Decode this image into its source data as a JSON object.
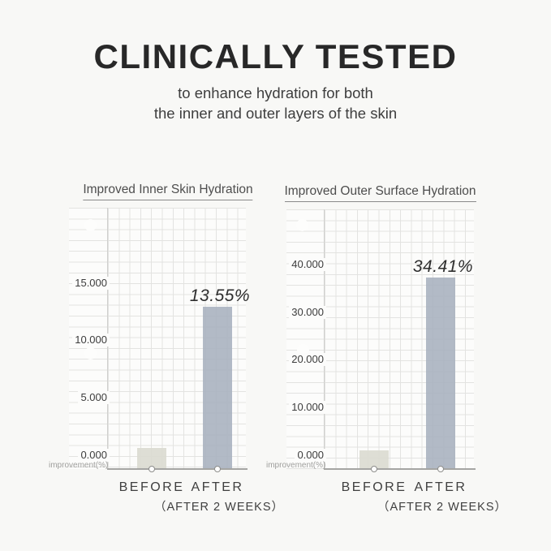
{
  "header": {
    "title": "CLINICALLY TESTED",
    "subtitle_line1": "to enhance hydration for both",
    "subtitle_line2": "the inner and outer layers of the skin"
  },
  "colors": {
    "background": "#f8f8f6",
    "paper": "#fcfcfb",
    "grid_line": "#e3e3e1",
    "baseline": "#a5a5a3",
    "bar_before": "rgba(219,219,209,0.92)",
    "bar_after": "rgba(167,176,190,0.88)"
  },
  "chart_data": [
    {
      "type": "bar",
      "title": "Improved Inner Skin Hydration",
      "categories": [
        "BEFORE",
        "AFTER"
      ],
      "values": [
        0.7,
        13.55
      ],
      "value_labels": [
        "",
        "13.55%"
      ],
      "category_sublabels": [
        "",
        "（AFTER 2 WEEKS）"
      ],
      "ylabel": "improvement(%)",
      "yticks": [
        0,
        5,
        10,
        15
      ],
      "ytick_labels": [
        "0.000",
        "5.000",
        "10.000",
        "15.000"
      ],
      "ylim": [
        0,
        20
      ],
      "grid": true,
      "legend": "none"
    },
    {
      "type": "bar",
      "title": "Improved Outer Surface Hydration",
      "categories": [
        "BEFORE",
        "AFTER"
      ],
      "values": [
        1.0,
        34.41
      ],
      "value_labels": [
        "",
        "34.41%"
      ],
      "category_sublabels": [
        "",
        "（AFTER 2 WEEKS）"
      ],
      "ylabel": "improvement(%)",
      "yticks": [
        0,
        10,
        20,
        30,
        40
      ],
      "ytick_labels": [
        "0.000",
        "10.000",
        "20.000",
        "30.000",
        "40.000"
      ],
      "ylim": [
        0,
        50
      ],
      "grid": true,
      "legend": "none"
    }
  ]
}
